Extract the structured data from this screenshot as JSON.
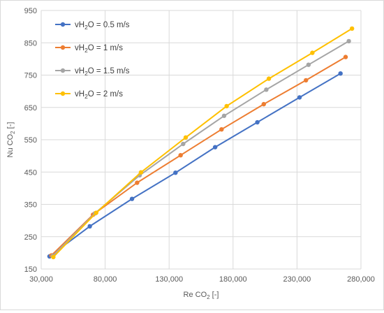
{
  "chart_data": {
    "type": "line",
    "title": "",
    "xlabel": {
      "base": "Re CO",
      "sub": "2",
      "suffix": " [-]"
    },
    "ylabel": {
      "base": "Nu CO",
      "sub": "2",
      "suffix": " [-]"
    },
    "xlim": [
      30000,
      280000
    ],
    "ylim": [
      150,
      950
    ],
    "x_ticks": [
      30000,
      80000,
      130000,
      180000,
      230000,
      280000
    ],
    "x_tick_labels": [
      "30,000",
      "80,000",
      "130,000",
      "180,000",
      "230,000",
      "280,000"
    ],
    "y_ticks": [
      150,
      250,
      350,
      450,
      550,
      650,
      750,
      850,
      950
    ],
    "y_tick_labels": [
      "150",
      "250",
      "350",
      "450",
      "550",
      "650",
      "750",
      "850",
      "950"
    ],
    "grid": true,
    "legend_position": "top-left",
    "series": [
      {
        "name": "vH2O = 0.5 m/s",
        "label": {
          "base": "vH",
          "sub": "2",
          "suffix": "O = 0.5 m/s"
        },
        "color": "#4472C4",
        "x": [
          36500,
          68000,
          101000,
          135000,
          166000,
          199000,
          232000,
          264000
        ],
        "y": [
          189,
          282,
          367,
          448,
          527,
          604,
          681,
          755
        ]
      },
      {
        "name": "vH2O = 1 m/s",
        "label": {
          "base": "vH",
          "sub": "2",
          "suffix": "O = 1 m/s"
        },
        "color": "#ED7D31",
        "x": [
          38000,
          70500,
          105000,
          139000,
          171000,
          204000,
          237000,
          268000
        ],
        "y": [
          192,
          318,
          417,
          502,
          582,
          660,
          734,
          806
        ]
      },
      {
        "name": "vH2O = 1.5 m/s",
        "label": {
          "base": "vH",
          "sub": "2",
          "suffix": "O = 1.5 m/s"
        },
        "color": "#A5A5A5",
        "x": [
          39000,
          72000,
          107000,
          141000,
          173000,
          206000,
          239000,
          270500
        ],
        "y": [
          190,
          322,
          440,
          537,
          624,
          705,
          782,
          855
        ]
      },
      {
        "name": "vH2O = 2 m/s",
        "label": {
          "base": "vH",
          "sub": "2",
          "suffix": "O = 2 m/s"
        },
        "color": "#FFC000",
        "x": [
          39500,
          73000,
          108000,
          143000,
          175000,
          208000,
          242000,
          273000
        ],
        "y": [
          187,
          324,
          449,
          557,
          654,
          739,
          819,
          894
        ]
      }
    ]
  }
}
